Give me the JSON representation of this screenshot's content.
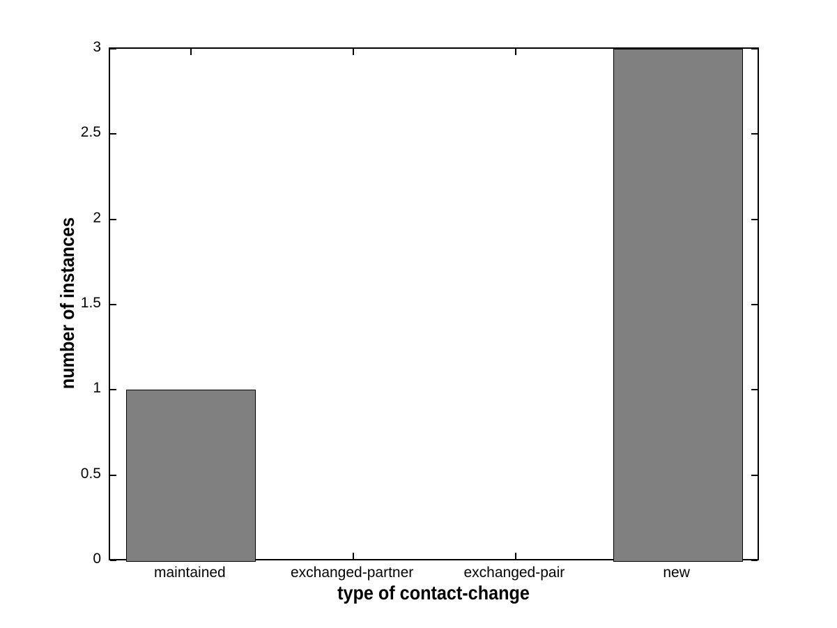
{
  "chart_data": {
    "type": "bar",
    "title": "",
    "categories": [
      "maintained",
      "exchanged-partner",
      "exchanged-pair",
      "new"
    ],
    "values": [
      1,
      0,
      0,
      3
    ],
    "xlabel": "type of contact-change",
    "ylabel": "number of instances",
    "ylim": [
      0,
      3
    ],
    "yticks": [
      0,
      0.5,
      1,
      1.5,
      2,
      2.5,
      3
    ],
    "ytick_labels": [
      "0",
      "0.5",
      "1",
      "1.5",
      "2",
      "2.5",
      "3"
    ],
    "xlim_category_units": [
      0.5,
      4.5
    ],
    "bar_width_fraction": 0.8,
    "grid": false,
    "legend": null,
    "tick_direction": "in",
    "colors": {
      "bar_fill": "#808080",
      "bar_edge": "#000000",
      "axis": "#000000",
      "background": "#ffffff",
      "text": "#000000"
    }
  }
}
